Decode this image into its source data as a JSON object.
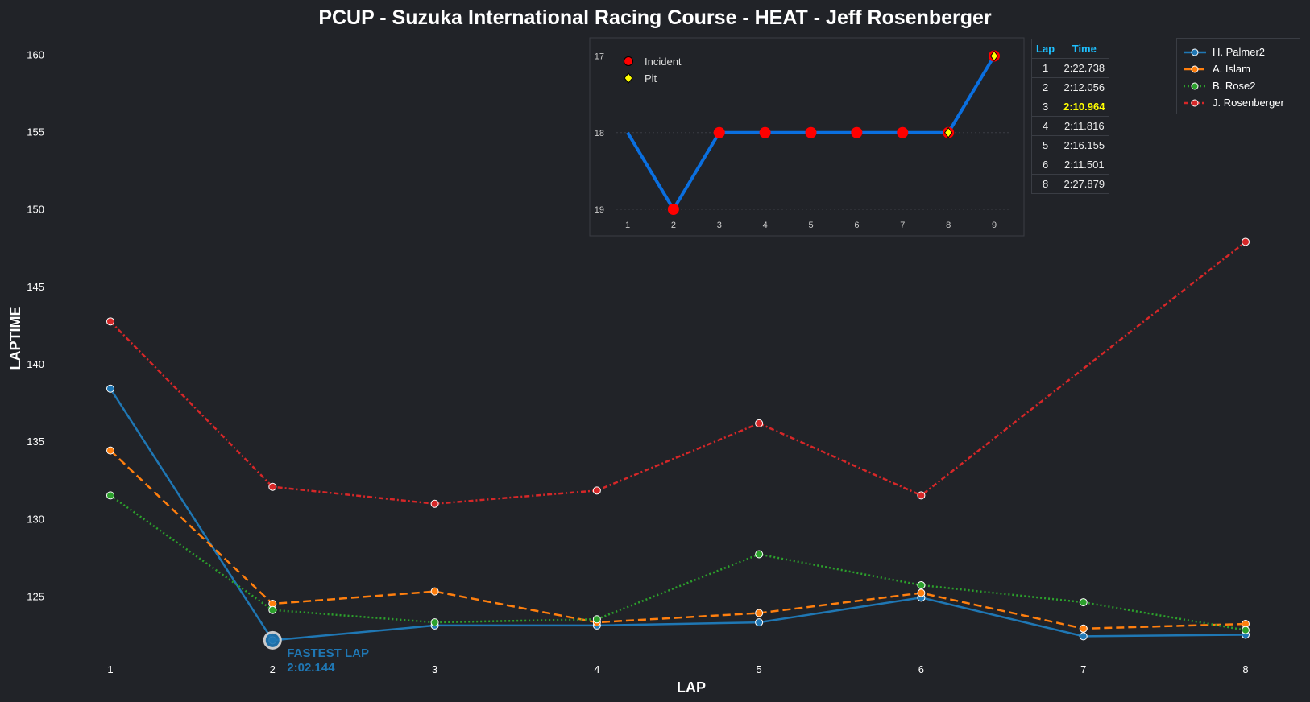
{
  "chart_data": {
    "type": "line",
    "title": "PCUP - Suzuka International Racing Course - HEAT - Jeff Rosenberger",
    "xlabel": "LAP",
    "ylabel": "LAPTIME",
    "x": [
      1,
      2,
      3,
      4,
      5,
      6,
      7,
      8
    ],
    "ylim": [
      121,
      161
    ],
    "yticks": [
      125,
      130,
      135,
      140,
      145,
      150,
      155,
      160
    ],
    "series": [
      {
        "name": "H. Palmer2",
        "color": "#1f77b4",
        "dash": "",
        "values": [
          138.4,
          122.144,
          123.1,
          123.1,
          123.3,
          124.9,
          122.4,
          122.5
        ]
      },
      {
        "name": "A. Islam",
        "color": "#ff7f0e",
        "dash": "10,5",
        "values": [
          134.4,
          124.5,
          125.3,
          123.3,
          123.9,
          125.2,
          122.9,
          123.2
        ]
      },
      {
        "name": "B. Rose2",
        "color": "#2ca02c",
        "dash": "2,3",
        "values": [
          131.5,
          124.1,
          123.3,
          123.5,
          127.7,
          125.7,
          124.6,
          122.8
        ]
      },
      {
        "name": "J. Rosenberger",
        "color": "#d62728",
        "dash": "6,3,2,3",
        "values": [
          142.738,
          132.056,
          130.964,
          131.816,
          136.155,
          131.501,
          null,
          147.879
        ]
      }
    ],
    "annotation": {
      "line1": "FASTEST LAP",
      "line2": "2:02.144",
      "lap": 2,
      "value": 122.144,
      "color": "#1f77b4"
    },
    "legend_position": "top-right",
    "inset": {
      "type": "line",
      "x": [
        1,
        2,
        3,
        4,
        5,
        6,
        7,
        8,
        9
      ],
      "positions": [
        18,
        19,
        18,
        18,
        18,
        18,
        18,
        18,
        17
      ],
      "yticks": [
        17,
        18,
        19
      ],
      "incident_laps": [
        2,
        3,
        4,
        5,
        6,
        7
      ],
      "pit_laps": [
        8,
        9
      ],
      "legend": {
        "incident": "Incident",
        "pit": "Pit"
      },
      "color": "#0a6fe0"
    },
    "table": {
      "headers": [
        "Lap",
        "Time"
      ],
      "rows": [
        [
          "1",
          "2:22.738"
        ],
        [
          "2",
          "2:12.056"
        ],
        [
          "3",
          "2:10.964"
        ],
        [
          "4",
          "2:11.816"
        ],
        [
          "5",
          "2:16.155"
        ],
        [
          "6",
          "2:11.501"
        ],
        [
          "8",
          "2:27.879"
        ]
      ],
      "best_row": 2
    }
  }
}
